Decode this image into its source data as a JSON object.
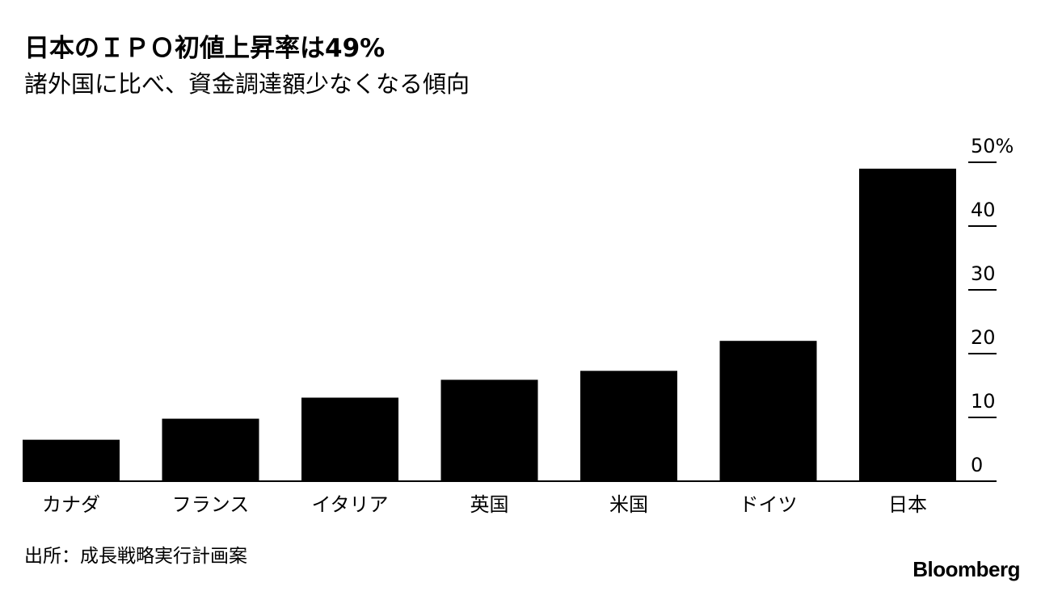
{
  "title": "日本のＩＰＯ初値上昇率は49%",
  "subtitle": "諸外国に比べ、資金調達額少なくなる傾向",
  "source": "出所：成長戦略実行計画案",
  "brand": "Bloomberg",
  "colors": {
    "bar": "#000000",
    "axis": "#000000",
    "background": "#ffffff"
  },
  "chart_data": {
    "type": "bar",
    "categories": [
      "カナダ",
      "フランス",
      "イタリア",
      "英国",
      "米国",
      "ドイツ",
      "日本"
    ],
    "values": [
      6.5,
      9.8,
      13.1,
      15.9,
      17.3,
      22.0,
      49.0
    ],
    "ylim": [
      0,
      50
    ],
    "yticks": [
      0,
      10,
      20,
      30,
      40,
      50
    ],
    "ytick_labels": [
      "0",
      "10",
      "20",
      "30",
      "40",
      "50%"
    ],
    "yaxis_position": "right",
    "grid": false,
    "legend": "none"
  }
}
